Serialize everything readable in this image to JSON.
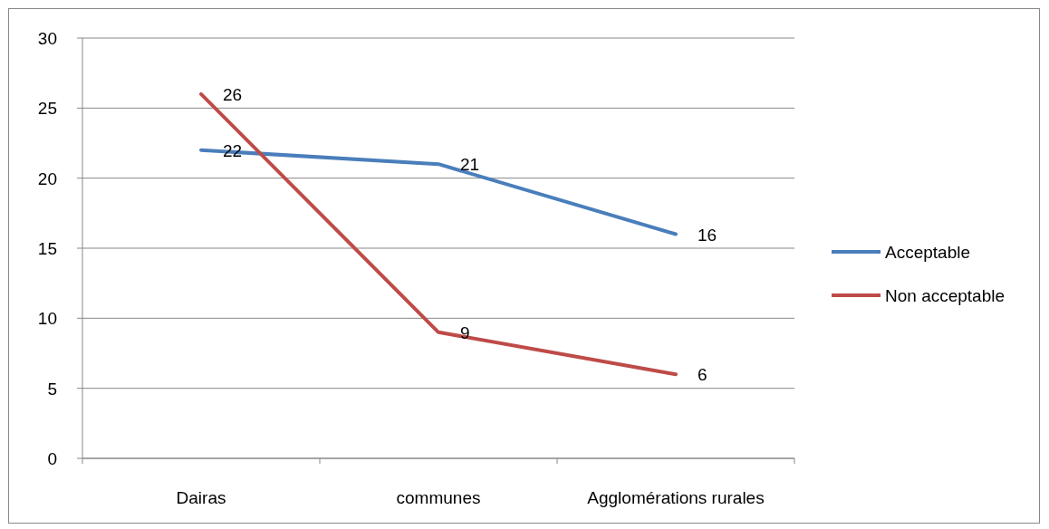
{
  "chart_data": {
    "type": "line",
    "categories": [
      "Dairas",
      "communes",
      "Agglomérations rurales"
    ],
    "series": [
      {
        "name": "Acceptable",
        "color": "#4a7ebb",
        "values": [
          22,
          21,
          16
        ]
      },
      {
        "name": "Non acceptable",
        "color": "#be4b48",
        "values": [
          26,
          9,
          6
        ]
      }
    ],
    "ylim": [
      0,
      30
    ],
    "yticks": [
      0,
      5,
      10,
      15,
      20,
      25,
      30
    ],
    "grid": "y",
    "legend": "right",
    "data_labels": true,
    "marker": "none",
    "line_style": "solid"
  }
}
